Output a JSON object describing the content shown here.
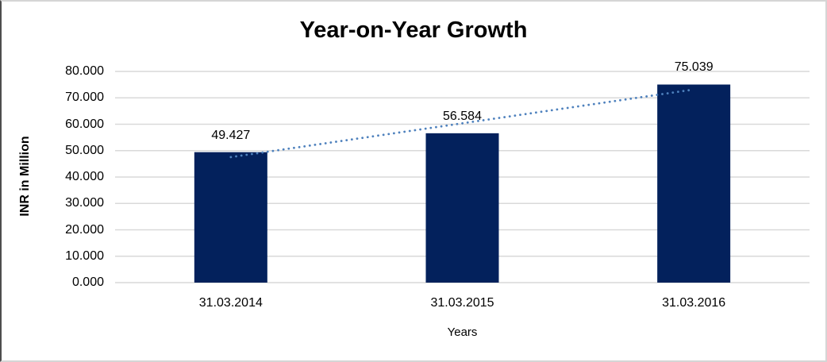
{
  "chart_data": {
    "type": "bar",
    "title": "Year-on-Year Growth",
    "categories": [
      "31.03.2014",
      "31.03.2015",
      "31.03.2016"
    ],
    "values": [
      49.427,
      56.584,
      75.039
    ],
    "data_labels": [
      "49.427",
      "56.584",
      "75.039"
    ],
    "xlabel": "Years",
    "ylabel": "INR in Million",
    "ylim": [
      0,
      80
    ],
    "ytick_step": 10,
    "ytick_labels": [
      "0.000",
      "10.000",
      "20.000",
      "30.000",
      "40.000",
      "50.000",
      "60.000",
      "70.000",
      "80.000"
    ],
    "grid": true,
    "legend": "none",
    "trendline": {
      "type": "linear",
      "style": "dotted"
    },
    "colors": {
      "bar": "#03215C",
      "trendline": "#4E81BD",
      "gridline": "#D9D9D9",
      "text": "#000000",
      "frame_border": "#D5D5D5",
      "frame_border_left": "#4D4D4D"
    }
  }
}
